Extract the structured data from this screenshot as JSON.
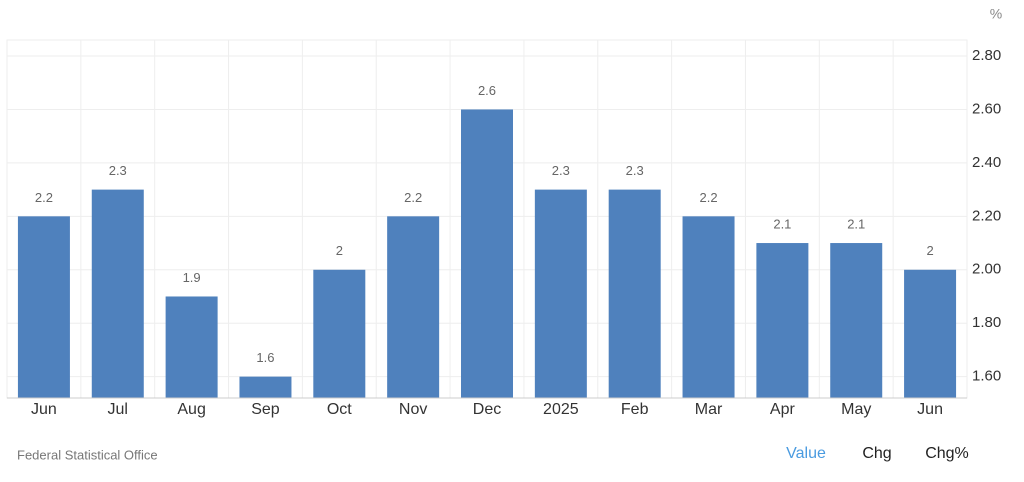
{
  "chart_data": {
    "type": "bar",
    "unit": "%",
    "categories": [
      "Jun",
      "Jul",
      "Aug",
      "Sep",
      "Oct",
      "Nov",
      "Dec",
      "2025",
      "Feb",
      "Mar",
      "Apr",
      "May",
      "Jun"
    ],
    "values": [
      2.2,
      2.3,
      1.9,
      1.6,
      2,
      2.2,
      2.6,
      2.3,
      2.3,
      2.2,
      2.1,
      2.1,
      2
    ],
    "color": "#4f81bd",
    "ylim": [
      1.52,
      2.86
    ],
    "yticks": [
      {
        "value": 1.6,
        "label": "1.60"
      },
      {
        "value": 1.8,
        "label": "1.80"
      },
      {
        "value": 2.0,
        "label": "2.00"
      },
      {
        "value": 2.2,
        "label": "2.20"
      },
      {
        "value": 2.4,
        "label": "2.40"
      },
      {
        "value": 2.6,
        "label": "2.60"
      },
      {
        "value": 2.8,
        "label": "2.80"
      }
    ],
    "grid": true,
    "source": "Federal Statistical Office",
    "buttons": [
      "Value",
      "Chg",
      "Chg%"
    ]
  }
}
